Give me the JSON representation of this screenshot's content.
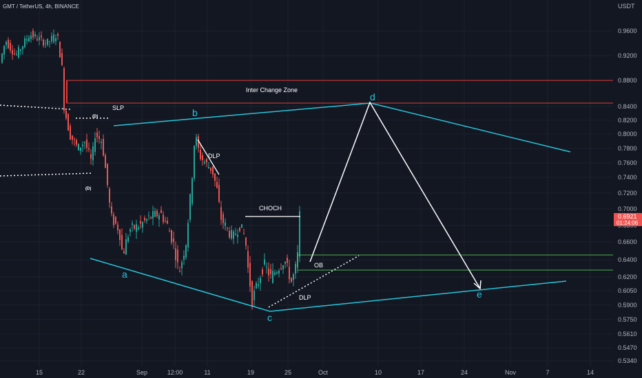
{
  "chart_data": {
    "type": "candlestick",
    "title": "GMT / TetherUS, 4h, BINANCE",
    "y_axis_unit": "USDT",
    "y_ticks": [
      "0.9600",
      "0.9200",
      "0.8800",
      "0.8400",
      "0.8200",
      "0.8000",
      "0.7800",
      "0.7600",
      "0.7400",
      "0.7200",
      "0.7000",
      "0.6800",
      "0.6600",
      "0.6400",
      "0.6200",
      "0.6050",
      "0.5900",
      "0.5750",
      "0.5610",
      "0.5470",
      "0.5340"
    ],
    "x_ticks": [
      "15",
      "22",
      "Sep",
      "12:00",
      "11",
      "19",
      "25",
      "Oct",
      "10",
      "17",
      "24",
      "Nov",
      "7",
      "14"
    ],
    "current_price": "0.6921",
    "countdown": "01:24:06",
    "colors": {
      "up": "#26a69a",
      "down": "#ef5350",
      "zone": "#e53935",
      "ob": "#4caf50",
      "pattern": "#26c6da",
      "projection": "#ffffff",
      "background": "#131722"
    },
    "zones": [
      {
        "label": "Inter Change Zone",
        "top": 0.88,
        "bottom": 0.845
      },
      {
        "label": "OB",
        "top": 0.646,
        "bottom": 0.628
      }
    ],
    "annotations": [
      "SLP",
      "CHOCH",
      "DLP",
      "DLP",
      "OB"
    ],
    "small_markers": [
      "(D)",
      "(D)"
    ],
    "wave_points": [
      {
        "label": "a",
        "x": "Aug 29",
        "y": 0.631
      },
      {
        "label": "b",
        "x": "Sep 12",
        "y": 0.822
      },
      {
        "label": "c",
        "x": "Sep 23",
        "y": 0.58
      },
      {
        "label": "d",
        "x": "Oct 9",
        "y": 0.844
      },
      {
        "label": "e",
        "x": "Oct 26",
        "y": 0.602
      }
    ]
  }
}
